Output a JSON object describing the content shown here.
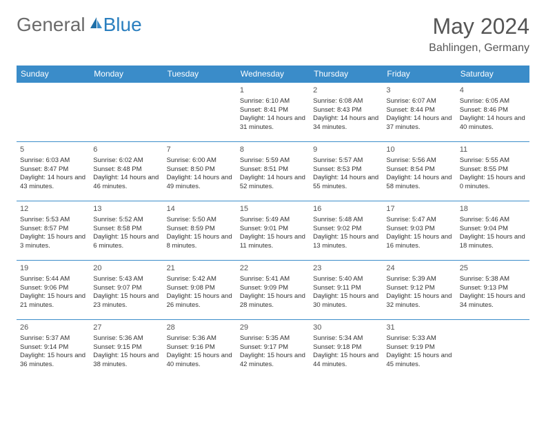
{
  "brand": {
    "part1": "General",
    "part2": "Blue"
  },
  "title": "May 2024",
  "location": "Bahlingen, Germany",
  "colors": {
    "header_bg": "#3a8cc9",
    "header_text": "#ffffff",
    "border": "#3a8cc9",
    "brand_gray": "#6b6b6b",
    "brand_blue": "#2b7fbf"
  },
  "weekdays": [
    "Sunday",
    "Monday",
    "Tuesday",
    "Wednesday",
    "Thursday",
    "Friday",
    "Saturday"
  ],
  "weeks": [
    [
      null,
      null,
      null,
      {
        "d": "1",
        "sr": "6:10 AM",
        "ss": "8:41 PM",
        "dl": "14 hours and 31 minutes."
      },
      {
        "d": "2",
        "sr": "6:08 AM",
        "ss": "8:43 PM",
        "dl": "14 hours and 34 minutes."
      },
      {
        "d": "3",
        "sr": "6:07 AM",
        "ss": "8:44 PM",
        "dl": "14 hours and 37 minutes."
      },
      {
        "d": "4",
        "sr": "6:05 AM",
        "ss": "8:46 PM",
        "dl": "14 hours and 40 minutes."
      }
    ],
    [
      {
        "d": "5",
        "sr": "6:03 AM",
        "ss": "8:47 PM",
        "dl": "14 hours and 43 minutes."
      },
      {
        "d": "6",
        "sr": "6:02 AM",
        "ss": "8:48 PM",
        "dl": "14 hours and 46 minutes."
      },
      {
        "d": "7",
        "sr": "6:00 AM",
        "ss": "8:50 PM",
        "dl": "14 hours and 49 minutes."
      },
      {
        "d": "8",
        "sr": "5:59 AM",
        "ss": "8:51 PM",
        "dl": "14 hours and 52 minutes."
      },
      {
        "d": "9",
        "sr": "5:57 AM",
        "ss": "8:53 PM",
        "dl": "14 hours and 55 minutes."
      },
      {
        "d": "10",
        "sr": "5:56 AM",
        "ss": "8:54 PM",
        "dl": "14 hours and 58 minutes."
      },
      {
        "d": "11",
        "sr": "5:55 AM",
        "ss": "8:55 PM",
        "dl": "15 hours and 0 minutes."
      }
    ],
    [
      {
        "d": "12",
        "sr": "5:53 AM",
        "ss": "8:57 PM",
        "dl": "15 hours and 3 minutes."
      },
      {
        "d": "13",
        "sr": "5:52 AM",
        "ss": "8:58 PM",
        "dl": "15 hours and 6 minutes."
      },
      {
        "d": "14",
        "sr": "5:50 AM",
        "ss": "8:59 PM",
        "dl": "15 hours and 8 minutes."
      },
      {
        "d": "15",
        "sr": "5:49 AM",
        "ss": "9:01 PM",
        "dl": "15 hours and 11 minutes."
      },
      {
        "d": "16",
        "sr": "5:48 AM",
        "ss": "9:02 PM",
        "dl": "15 hours and 13 minutes."
      },
      {
        "d": "17",
        "sr": "5:47 AM",
        "ss": "9:03 PM",
        "dl": "15 hours and 16 minutes."
      },
      {
        "d": "18",
        "sr": "5:46 AM",
        "ss": "9:04 PM",
        "dl": "15 hours and 18 minutes."
      }
    ],
    [
      {
        "d": "19",
        "sr": "5:44 AM",
        "ss": "9:06 PM",
        "dl": "15 hours and 21 minutes."
      },
      {
        "d": "20",
        "sr": "5:43 AM",
        "ss": "9:07 PM",
        "dl": "15 hours and 23 minutes."
      },
      {
        "d": "21",
        "sr": "5:42 AM",
        "ss": "9:08 PM",
        "dl": "15 hours and 26 minutes."
      },
      {
        "d": "22",
        "sr": "5:41 AM",
        "ss": "9:09 PM",
        "dl": "15 hours and 28 minutes."
      },
      {
        "d": "23",
        "sr": "5:40 AM",
        "ss": "9:11 PM",
        "dl": "15 hours and 30 minutes."
      },
      {
        "d": "24",
        "sr": "5:39 AM",
        "ss": "9:12 PM",
        "dl": "15 hours and 32 minutes."
      },
      {
        "d": "25",
        "sr": "5:38 AM",
        "ss": "9:13 PM",
        "dl": "15 hours and 34 minutes."
      }
    ],
    [
      {
        "d": "26",
        "sr": "5:37 AM",
        "ss": "9:14 PM",
        "dl": "15 hours and 36 minutes."
      },
      {
        "d": "27",
        "sr": "5:36 AM",
        "ss": "9:15 PM",
        "dl": "15 hours and 38 minutes."
      },
      {
        "d": "28",
        "sr": "5:36 AM",
        "ss": "9:16 PM",
        "dl": "15 hours and 40 minutes."
      },
      {
        "d": "29",
        "sr": "5:35 AM",
        "ss": "9:17 PM",
        "dl": "15 hours and 42 minutes."
      },
      {
        "d": "30",
        "sr": "5:34 AM",
        "ss": "9:18 PM",
        "dl": "15 hours and 44 minutes."
      },
      {
        "d": "31",
        "sr": "5:33 AM",
        "ss": "9:19 PM",
        "dl": "15 hours and 45 minutes."
      },
      null
    ]
  ],
  "labels": {
    "sunrise": "Sunrise:",
    "sunset": "Sunset:",
    "daylight": "Daylight:"
  }
}
